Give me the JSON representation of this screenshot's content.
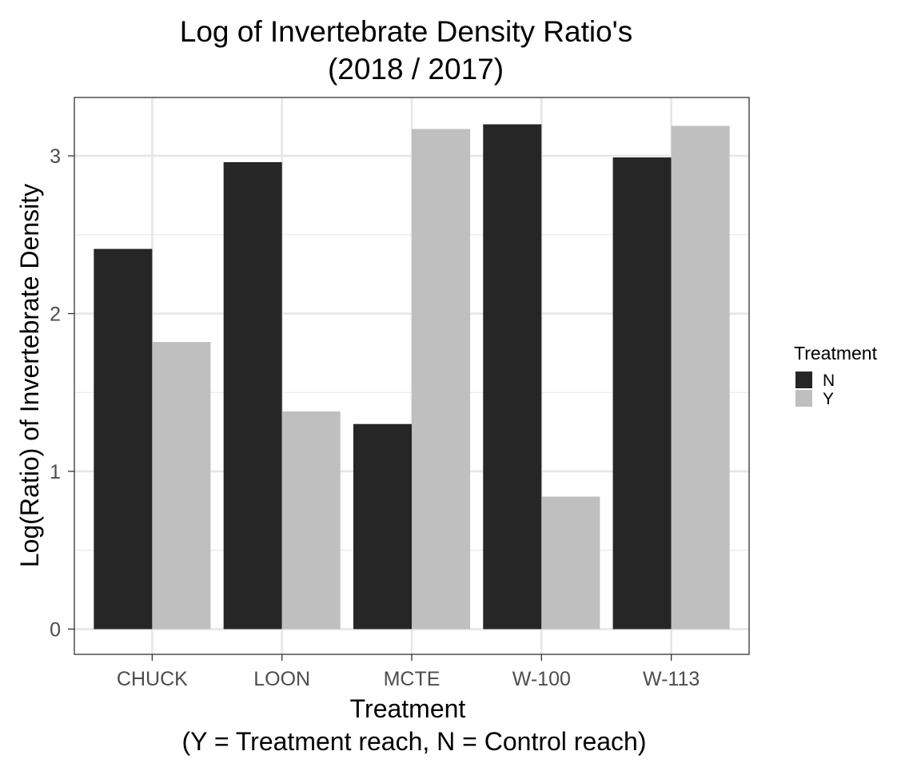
{
  "chart_data": {
    "type": "bar",
    "title": "Log of Invertebrate Density Ratio's",
    "subtitle": "(2018 / 2017)",
    "xlabel": "Treatment",
    "xlabel_note": "(Y = Treatment reach, N = Control reach)",
    "ylabel": "Log(Ratio) of Invertebrate Density",
    "categories": [
      "CHUCK",
      "LOON",
      "MCTE",
      "W-100",
      "W-113"
    ],
    "series": [
      {
        "name": "N",
        "color": "#262626",
        "values": [
          2.41,
          2.96,
          1.3,
          3.2,
          2.99
        ]
      },
      {
        "name": "Y",
        "color": "#bfbfbf",
        "values": [
          1.82,
          1.38,
          3.17,
          0.84,
          3.19
        ]
      }
    ],
    "ylim": [
      -0.16,
      3.37
    ],
    "yticks": [
      0,
      1,
      2,
      3
    ],
    "grid": true,
    "legend": {
      "title": "Treatment",
      "position": "right"
    }
  }
}
